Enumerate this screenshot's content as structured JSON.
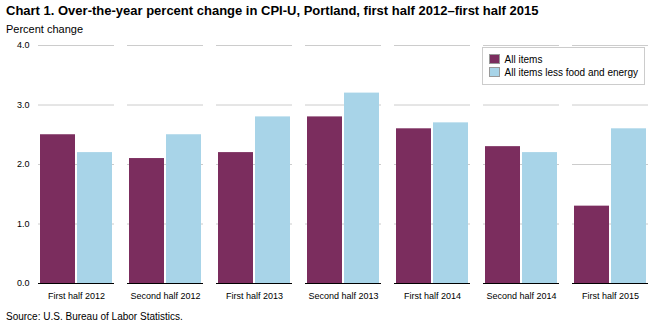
{
  "chart_data": {
    "type": "bar",
    "title": "Chart 1. Over-the-year percent change in CPI-U, Portland, first  half 2012–first  half 2015",
    "ylabel": "Percent change",
    "source": "Source: U.S. Bureau of Labor Statistics.",
    "categories": [
      "First half 2012",
      "Second half 2012",
      "First half 2013",
      "Second half 2013",
      "First half 2014",
      "Second half 2014",
      "First half 2015"
    ],
    "series": [
      {
        "name": "All items",
        "color": "#7B2D5E",
        "values": [
          2.5,
          2.1,
          2.2,
          2.8,
          2.6,
          2.3,
          1.3
        ]
      },
      {
        "name": "All items less food and energy",
        "color": "#A8D4E8",
        "values": [
          2.2,
          2.5,
          2.8,
          3.2,
          2.7,
          2.2,
          2.6
        ]
      }
    ],
    "ylim": [
      0.0,
      4.0
    ],
    "yticks": [
      {
        "value": 0,
        "label": "0.0"
      },
      {
        "value": 1,
        "label": "1.0"
      },
      {
        "value": 2,
        "label": "2.0"
      },
      {
        "value": 3,
        "label": "3.0"
      },
      {
        "value": 4,
        "label": "4.0"
      }
    ],
    "grid": true,
    "legend": "upper right"
  }
}
